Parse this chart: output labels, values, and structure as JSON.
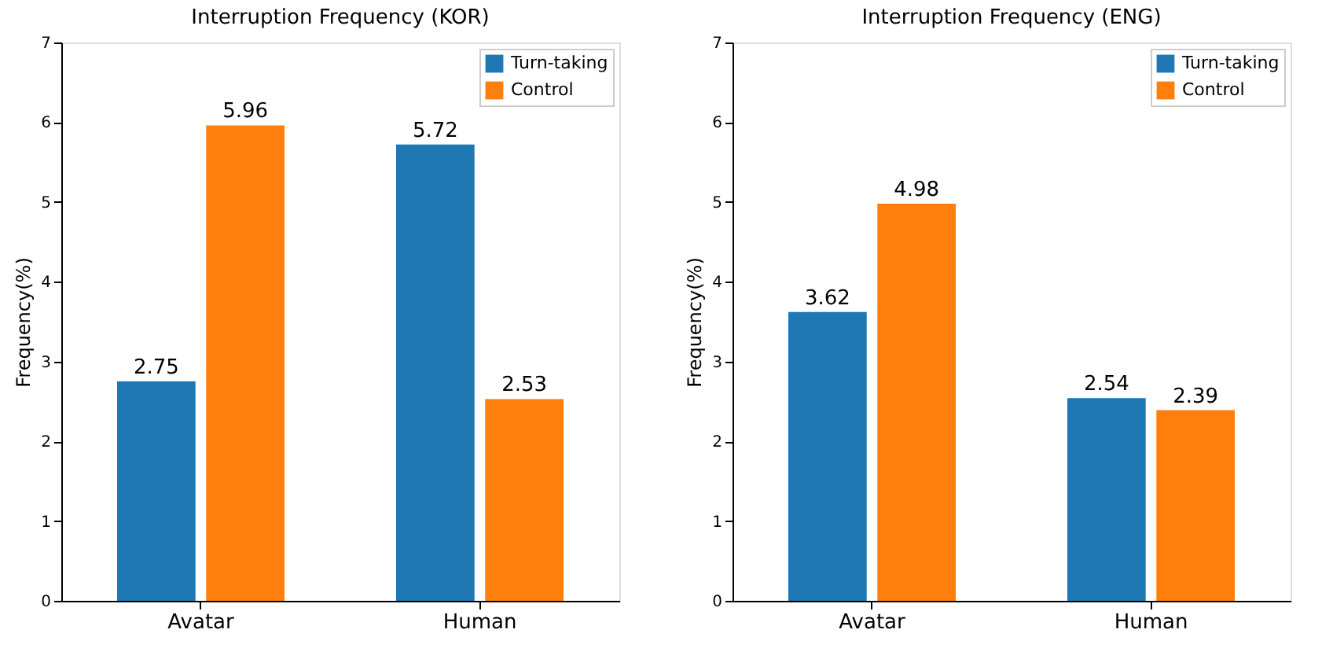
{
  "chart_data": [
    {
      "type": "bar",
      "title": "Interruption Frequency (KOR)",
      "ylabel": "Frequency(%)",
      "categories": [
        "Avatar",
        "Human"
      ],
      "series": [
        {
          "name": "Turn-taking",
          "color": "#1f77b4",
          "values": [
            2.75,
            5.72
          ]
        },
        {
          "name": "Control",
          "color": "#ff7f0e",
          "values": [
            5.96,
            2.53
          ]
        }
      ],
      "ylim": [
        0,
        7
      ],
      "yticks": [
        0,
        1,
        2,
        3,
        4,
        5,
        6,
        7
      ],
      "data_labels": true,
      "legend": "top right",
      "grid": false
    },
    {
      "type": "bar",
      "title": "Interruption Frequency (ENG)",
      "ylabel": "Frequency(%)",
      "categories": [
        "Avatar",
        "Human"
      ],
      "series": [
        {
          "name": "Turn-taking",
          "color": "#1f77b4",
          "values": [
            3.62,
            2.54
          ]
        },
        {
          "name": "Control",
          "color": "#ff7f0e",
          "values": [
            4.98,
            2.39
          ]
        }
      ],
      "ylim": [
        0,
        7
      ],
      "yticks": [
        0,
        1,
        2,
        3,
        4,
        5,
        6,
        7
      ],
      "data_labels": true,
      "legend": "top right",
      "grid": false
    }
  ]
}
